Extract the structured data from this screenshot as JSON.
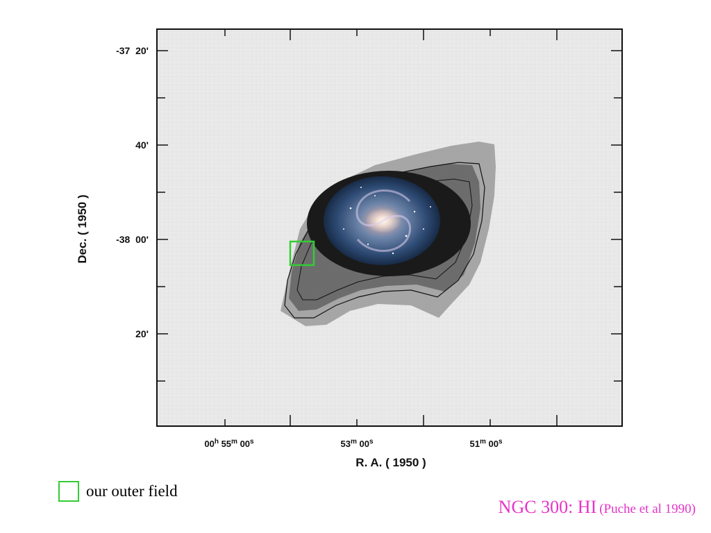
{
  "figure": {
    "y_axis": {
      "title": "Dec. ( 1950 )",
      "ticks": [
        "-37  20'",
        "40'",
        "-38  00'",
        "20'"
      ]
    },
    "x_axis": {
      "title": "R. A. ( 1950 )",
      "ticks": [
        {
          "a": "00",
          "b": "h",
          "c": " 55",
          "d": "m",
          "e": " 00",
          "f": "s"
        },
        {
          "a": "",
          "b": "",
          "c": "53",
          "d": "m",
          "e": " 00",
          "f": "s"
        },
        {
          "a": "",
          "b": "",
          "c": "51",
          "d": "m",
          "e": " 00",
          "f": "s"
        }
      ]
    },
    "field_marker_color": "#33cc33",
    "caption_color": "#e633c8"
  },
  "legend": {
    "label": "our outer field"
  },
  "caption": {
    "main": "NGC 300: HI",
    "ref": "(Puche et al 1990)"
  }
}
